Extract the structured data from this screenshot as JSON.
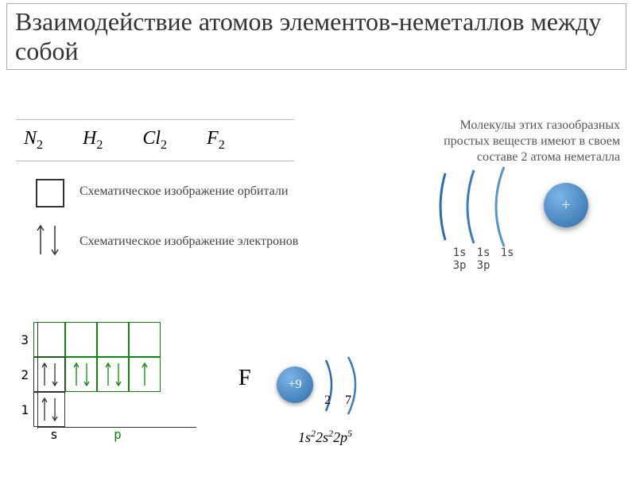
{
  "title": "Взаимодействие атомов элементов-неметаллов между собой",
  "formulas": [
    "N",
    "H",
    "Cl",
    "F"
  ],
  "formula_sub": "2",
  "desc_line1": "Молекулы этих газообразных",
  "desc_line2": "простых веществ имеют в своем",
  "desc_line3": "составе 2 атома неметалла",
  "legend1": "Схематическое изображение орбитали",
  "legend2": "Схематическое изображение электронов",
  "shells_labels": [
    "1s",
    "1s",
    "1s"
  ],
  "shells_labels2": [
    "3p",
    "3p",
    ""
  ],
  "nucleus_plus": "+",
  "F_letter": "F",
  "f_nucleus": "+9",
  "f_shell_nums": [
    "2",
    "7"
  ],
  "f_config_parts": [
    "1",
    "s",
    "2",
    "2",
    "s",
    "2",
    "2",
    "p",
    "5"
  ],
  "colors": {
    "green": "#0a8a0a",
    "black": "#333333",
    "nucleus_light": "#5b9bd5",
    "nucleus_dark": "#2e6ca8",
    "arc1": "#2b6bb0",
    "arc2": "#3a7cc0",
    "arc3": "#5a93c8"
  },
  "orbital": {
    "rows": [
      {
        "label": "3",
        "cells": [
          {
            "color": "#0a8a0a",
            "arrows": 0,
            "dir": ""
          },
          {
            "color": "#0a8a0a",
            "arrows": 0,
            "dir": ""
          },
          {
            "color": "#0a8a0a",
            "arrows": 0,
            "dir": ""
          },
          {
            "color": "#0a8a0a",
            "arrows": 0,
            "dir": ""
          }
        ]
      },
      {
        "label": "2",
        "cells": [
          {
            "color": "#333",
            "arrows": 2,
            "dir": "ud"
          },
          {
            "color": "#0a8a0a",
            "arrows": 2,
            "dir": "ud"
          },
          {
            "color": "#0a8a0a",
            "arrows": 2,
            "dir": "ud"
          },
          {
            "color": "#0a8a0a",
            "arrows": 1,
            "dir": "u"
          }
        ]
      },
      {
        "label": "1",
        "cells": [
          {
            "color": "#333",
            "arrows": 2,
            "dir": "ud"
          }
        ]
      }
    ],
    "axis": {
      "s": "s",
      "p": "p"
    }
  }
}
